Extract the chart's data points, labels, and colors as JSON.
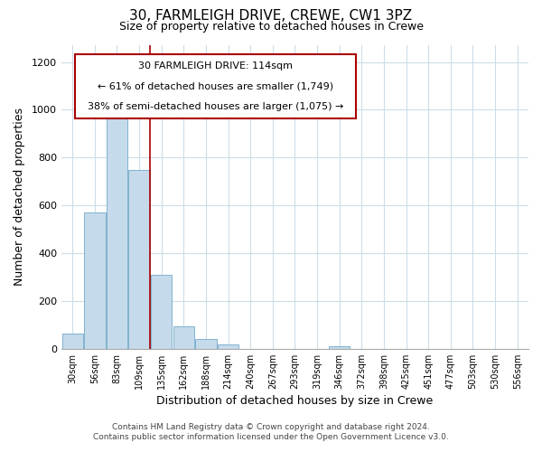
{
  "title": "30, FARMLEIGH DRIVE, CREWE, CW1 3PZ",
  "subtitle": "Size of property relative to detached houses in Crewe",
  "xlabel": "Distribution of detached houses by size in Crewe",
  "ylabel": "Number of detached properties",
  "bar_color": "#c5daea",
  "bar_edge_color": "#7fb3cf",
  "annotation_line_color": "#aa0000",
  "bin_labels": [
    "30sqm",
    "56sqm",
    "83sqm",
    "109sqm",
    "135sqm",
    "162sqm",
    "188sqm",
    "214sqm",
    "240sqm",
    "267sqm",
    "293sqm",
    "319sqm",
    "346sqm",
    "372sqm",
    "398sqm",
    "425sqm",
    "451sqm",
    "477sqm",
    "503sqm",
    "530sqm",
    "556sqm"
  ],
  "bar_heights": [
    65,
    570,
    1005,
    750,
    310,
    93,
    40,
    20,
    0,
    0,
    0,
    0,
    10,
    0,
    0,
    0,
    0,
    0,
    0,
    0,
    0
  ],
  "red_line_x": 3.5,
  "annotation_text_line1": "30 FARMLEIGH DRIVE: 114sqm",
  "annotation_text_line2": "← 61% of detached houses are smaller (1,749)",
  "annotation_text_line3": "38% of semi-detached houses are larger (1,075) →",
  "ylim": [
    0,
    1270
  ],
  "yticks": [
    0,
    200,
    400,
    600,
    800,
    1000,
    1200
  ],
  "footer_line1": "Contains HM Land Registry data © Crown copyright and database right 2024.",
  "footer_line2": "Contains public sector information licensed under the Open Government Licence v3.0.",
  "figsize": [
    6.0,
    5.0
  ],
  "dpi": 100,
  "background_color": "#ffffff"
}
